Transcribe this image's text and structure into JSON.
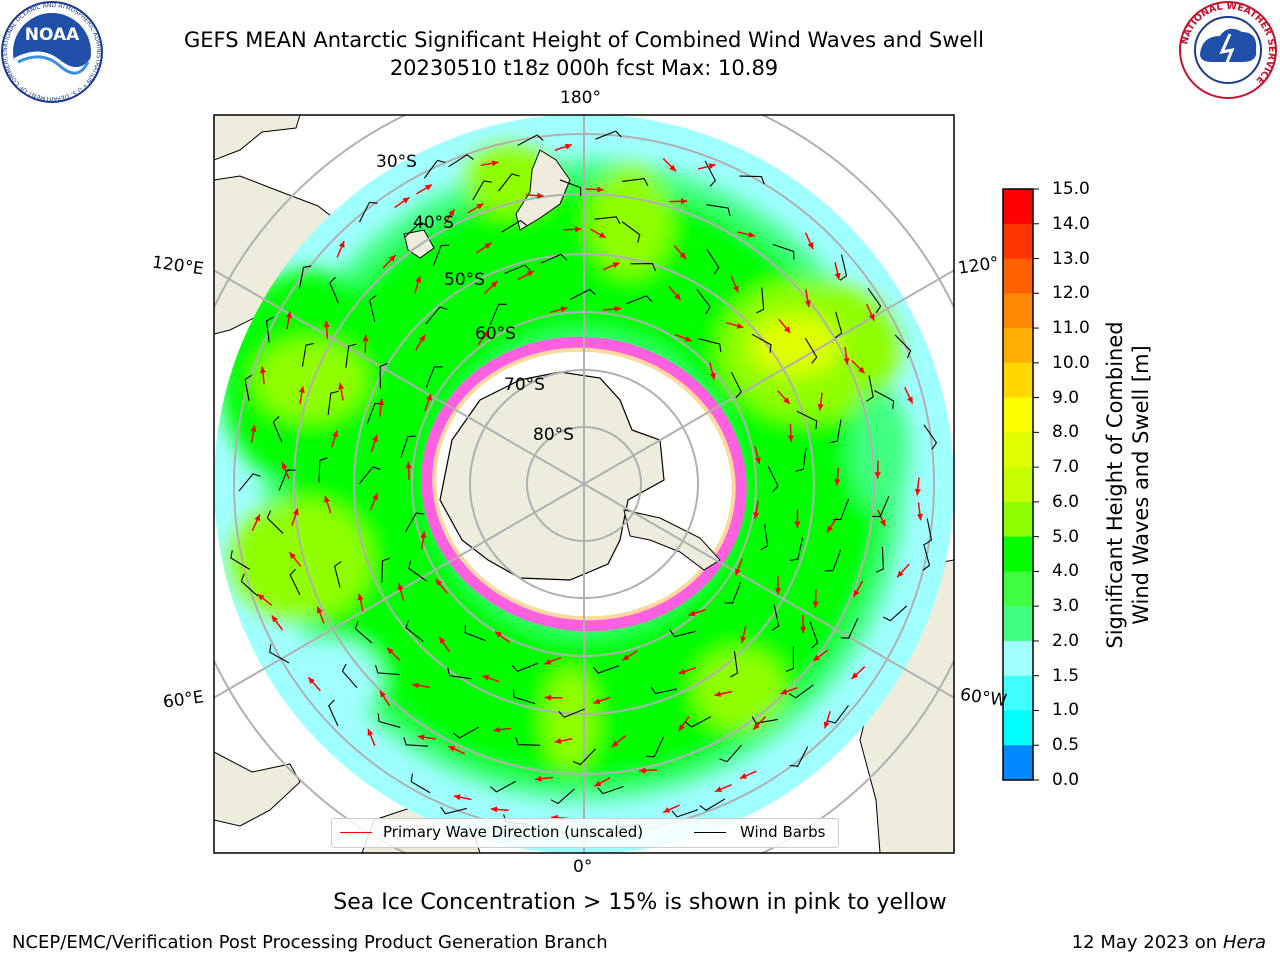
{
  "header": {
    "title_line1": "GEFS MEAN Antarctic Significant Height of Combined Wind Waves and Swell",
    "title_line2": "20230510 t18z 000h fcst   Max: 10.89"
  },
  "logos": {
    "noaa_text": "NOAA",
    "noaa_ring": "NATIONAL OCEANIC AND ATMOSPHERIC ADMINISTRATION • U.S. DEPARTMENT OF COMMERCE",
    "nws_ring": "NATIONAL WEATHER SERVICE"
  },
  "map": {
    "longitude_labels": {
      "top": "180°",
      "bottom": "0°",
      "left_upper": "120°E",
      "left_lower": "60°E",
      "right_upper": "120°",
      "right_lower": "60°W"
    },
    "latitude_labels": [
      "30°S",
      "40°S",
      "50°S",
      "60°S",
      "70°S",
      "80°S"
    ]
  },
  "colorbar": {
    "label_line1": "Significant Height of Combined",
    "label_line2": "Wind Waves and Swell [m]",
    "ticks": [
      "15.0",
      "14.0",
      "13.0",
      "12.0",
      "11.0",
      "10.0",
      "9.0",
      "8.0",
      "7.0",
      "6.0",
      "5.0",
      "4.0",
      "3.0",
      "2.0",
      "1.5",
      "1.0",
      "0.5",
      "0.0"
    ],
    "colors": [
      "#ff0000",
      "#ff3300",
      "#ff6000",
      "#ff8800",
      "#ffb000",
      "#ffd800",
      "#ffff00",
      "#e0ff00",
      "#c8ff00",
      "#90ff00",
      "#00ff00",
      "#40ff40",
      "#40ff80",
      "#a0ffff",
      "#40ffff",
      "#00ffff",
      "#0088ff",
      "#0000ff"
    ]
  },
  "legend": {
    "wave_label": "Primary Wave Direction (unscaled)",
    "wind_label": "Wind Barbs",
    "wave_color": "#ff0000",
    "wind_color": "#000000"
  },
  "note": "Sea Ice Concentration > 15% is shown in pink to yellow",
  "footer": {
    "left": "NCEP/EMC/Verification Post Processing Product Generation Branch",
    "right_date": "12 May 2023 on",
    "right_machine": "Hera"
  }
}
